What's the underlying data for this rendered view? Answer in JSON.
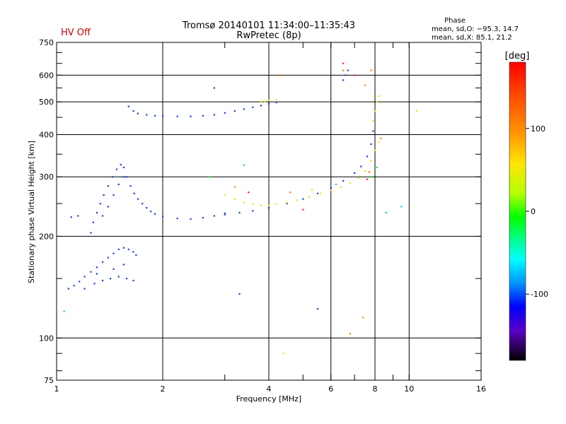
{
  "header": {
    "status": "HV Off",
    "status_color": "#cc0000",
    "title_line1": "Tromsø 20140101 11:34:00–11:35:43",
    "title_line2": "RwPretec (8p)",
    "stats_title": "Phase",
    "stats_o": "mean, sd,O: −95.3, 14.7",
    "stats_x": "mean, sd,X:  85.1, 21.2"
  },
  "chart_data": {
    "type": "scatter",
    "xlabel": "Frequency [MHz]",
    "ylabel": "Stationary phase Virtual Height [km]",
    "x_scale": "log",
    "y_scale": "log",
    "xlim": [
      1,
      16
    ],
    "ylim": [
      75,
      750
    ],
    "x_ticks": [
      1,
      2,
      4,
      6,
      8,
      10,
      16
    ],
    "y_ticks": [
      75,
      100,
      200,
      300,
      400,
      500,
      600,
      750
    ],
    "grid_x": [
      2,
      4,
      6,
      8,
      10
    ],
    "grid_y": [
      100,
      200,
      300,
      400,
      500,
      600
    ],
    "colorbar": {
      "label": "[deg]",
      "range": [
        -180,
        180
      ],
      "ticks": [
        100,
        0,
        -100
      ]
    },
    "series": [
      {
        "color": "#1a3fe0",
        "points": [
          [
            1.08,
            140
          ],
          [
            1.12,
            143
          ],
          [
            1.16,
            147
          ],
          [
            1.2,
            152
          ],
          [
            1.25,
            157
          ],
          [
            1.3,
            162
          ],
          [
            1.35,
            168
          ],
          [
            1.4,
            173
          ],
          [
            1.45,
            178
          ],
          [
            1.5,
            183
          ],
          [
            1.55,
            185
          ],
          [
            1.6,
            183
          ],
          [
            1.65,
            180
          ],
          [
            1.68,
            176
          ],
          [
            1.2,
            140
          ],
          [
            1.28,
            145
          ],
          [
            1.35,
            148
          ],
          [
            1.42,
            150
          ],
          [
            1.5,
            152
          ],
          [
            1.58,
            150
          ],
          [
            1.65,
            148
          ],
          [
            1.3,
            155
          ],
          [
            1.45,
            160
          ],
          [
            1.55,
            165
          ],
          [
            1.25,
            205
          ],
          [
            1.27,
            220
          ],
          [
            1.3,
            235
          ],
          [
            1.33,
            250
          ],
          [
            1.36,
            265
          ],
          [
            1.4,
            282
          ],
          [
            1.44,
            300
          ],
          [
            1.48,
            316
          ],
          [
            1.52,
            326
          ],
          [
            1.55,
            320
          ],
          [
            1.58,
            300
          ],
          [
            1.62,
            282
          ],
          [
            1.66,
            268
          ],
          [
            1.7,
            258
          ],
          [
            1.75,
            250
          ],
          [
            1.8,
            243
          ],
          [
            1.85,
            237
          ],
          [
            1.9,
            233
          ],
          [
            2.0,
            229
          ],
          [
            2.2,
            226
          ],
          [
            2.4,
            225
          ],
          [
            2.6,
            227
          ],
          [
            2.8,
            230
          ],
          [
            3.0,
            234
          ],
          [
            1.35,
            230
          ],
          [
            1.4,
            245
          ],
          [
            1.45,
            265
          ],
          [
            1.5,
            285
          ],
          [
            1.55,
            300
          ],
          [
            1.6,
            485
          ],
          [
            1.65,
            470
          ],
          [
            1.7,
            462
          ],
          [
            1.8,
            458
          ],
          [
            1.9,
            455
          ],
          [
            2.0,
            454
          ],
          [
            2.2,
            453
          ],
          [
            2.4,
            453
          ],
          [
            2.6,
            455
          ],
          [
            2.8,
            458
          ],
          [
            3.0,
            464
          ],
          [
            3.2,
            470
          ],
          [
            3.4,
            476
          ],
          [
            3.6,
            482
          ],
          [
            3.8,
            488
          ],
          [
            4.0,
            494
          ],
          [
            4.2,
            498
          ],
          [
            3.0,
            232
          ],
          [
            3.3,
            235
          ],
          [
            3.6,
            238
          ],
          [
            4.0,
            243
          ],
          [
            4.5,
            250
          ],
          [
            5.0,
            258
          ],
          [
            5.5,
            268
          ],
          [
            6.0,
            278
          ],
          [
            6.5,
            292
          ],
          [
            7.0,
            308
          ],
          [
            7.3,
            322
          ],
          [
            7.6,
            345
          ],
          [
            7.8,
            375
          ],
          [
            7.9,
            410
          ],
          [
            6.5,
            580
          ],
          [
            6.6,
            600
          ],
          [
            6.7,
            620
          ],
          [
            1.1,
            228
          ],
          [
            1.15,
            230
          ],
          [
            2.8,
            550
          ],
          [
            3.3,
            135
          ],
          [
            5.5,
            122
          ]
        ]
      },
      {
        "color": "#e6e600",
        "points": [
          [
            3.0,
            265
          ],
          [
            3.2,
            258
          ],
          [
            3.4,
            252
          ],
          [
            3.6,
            249
          ],
          [
            3.8,
            247
          ],
          [
            4.0,
            247
          ],
          [
            4.2,
            249
          ],
          [
            4.5,
            252
          ],
          [
            4.8,
            256
          ],
          [
            5.2,
            262
          ],
          [
            5.6,
            268
          ],
          [
            6.0,
            274
          ],
          [
            6.4,
            280
          ],
          [
            6.8,
            288
          ],
          [
            7.2,
            298
          ],
          [
            7.5,
            312
          ],
          [
            7.8,
            335
          ],
          [
            8.0,
            360
          ],
          [
            8.2,
            380
          ],
          [
            3.8,
            500
          ],
          [
            3.9,
            502
          ],
          [
            4.0,
            505
          ],
          [
            4.2,
            508
          ],
          [
            7.9,
            440
          ],
          [
            8.0,
            470
          ],
          [
            8.1,
            500
          ],
          [
            8.2,
            520
          ],
          [
            5.3,
            275
          ],
          [
            4.4,
            90
          ],
          [
            10.5,
            470
          ]
        ]
      },
      {
        "color": "#ff8000",
        "points": [
          [
            6.5,
            620
          ],
          [
            7.8,
            620
          ],
          [
            7.5,
            560
          ],
          [
            6.8,
            103
          ],
          [
            7.4,
            115
          ],
          [
            3.2,
            280
          ],
          [
            4.6,
            270
          ],
          [
            8.3,
            390
          ],
          [
            4.3,
            600
          ],
          [
            7.7,
            310
          ]
        ]
      },
      {
        "color": "#ff2020",
        "points": [
          [
            6.5,
            650
          ],
          [
            7.0,
            600
          ],
          [
            3.5,
            270
          ],
          [
            5.0,
            240
          ],
          [
            7.6,
            295
          ]
        ]
      },
      {
        "color": "#20e020",
        "points": [
          [
            7.8,
            300
          ],
          [
            8.1,
            320
          ],
          [
            2.7,
            300
          ]
        ]
      },
      {
        "color": "#00d0ff",
        "points": [
          [
            9.5,
            245
          ],
          [
            8.6,
            235
          ],
          [
            1.05,
            120
          ],
          [
            3.4,
            325
          ],
          [
            6.2,
            285
          ]
        ]
      }
    ]
  }
}
